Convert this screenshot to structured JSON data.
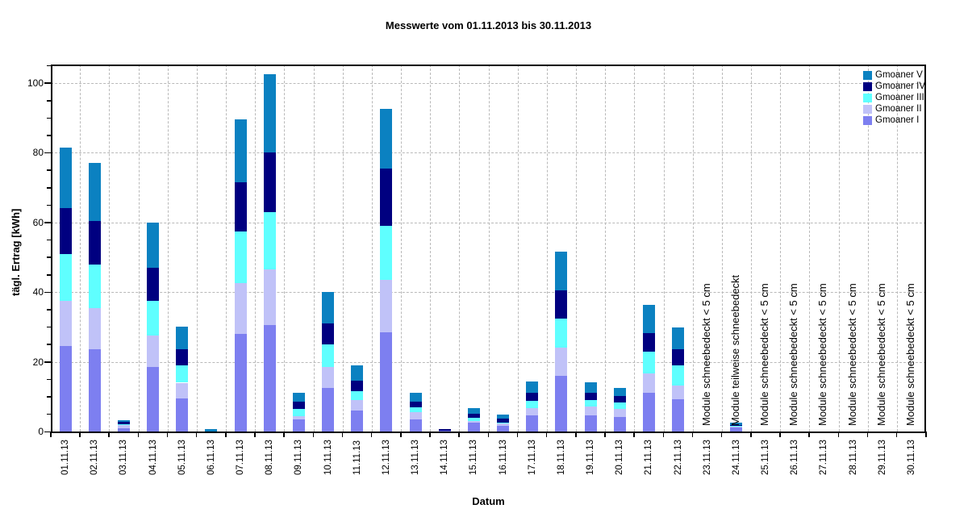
{
  "chart_data": {
    "type": "bar",
    "stacked": true,
    "title": "Messwerte vom 01.11.2013 bis 30.11.2013",
    "xlabel": "Datum",
    "ylabel": "tägl. Ertrag [kWh]",
    "ylim": [
      0,
      105
    ],
    "yticks": [
      0,
      20,
      40,
      60,
      80,
      100
    ],
    "minor_tick_step": 5,
    "grid": true,
    "grid_color": "#b9b9b9",
    "axis_color": "#000000",
    "legend_position": "top-right-inside",
    "legend_order": [
      "Gmoaner V",
      "Gmoaner IV",
      "Gmoaner III",
      "Gmoaner II",
      "Gmoaner I"
    ],
    "categories": [
      "01.11.13",
      "02.11.13",
      "03.11.13",
      "04.11.13",
      "05.11.13",
      "06.11.13",
      "07.11.13",
      "08.11.13",
      "09.11.13",
      "10.11.13",
      "11.11.13",
      "12.11.13",
      "13.11.13",
      "14.11.13",
      "15.11.13",
      "16.11.13",
      "17.11.13",
      "18.11.13",
      "19.11.13",
      "20.11.13",
      "21.11.13",
      "22.11.13",
      "23.11.13",
      "24.11.13",
      "25.11.13",
      "26.11.13",
      "27.11.13",
      "28.11.13",
      "29.11.13",
      "30.11.13"
    ],
    "series": [
      {
        "name": "Gmoaner I",
        "color": "#7d7ff0",
        "values": [
          24.5,
          23.5,
          1.0,
          18.5,
          9.5,
          0.1,
          28.0,
          30.5,
          3.5,
          12.5,
          6.0,
          28.5,
          3.5,
          0.2,
          2.5,
          1.7,
          4.6,
          16.0,
          4.6,
          4.2,
          11.0,
          9.3,
          0,
          1.1,
          0,
          0,
          0,
          0,
          0,
          0
        ]
      },
      {
        "name": "Gmoaner II",
        "color": "#c0c2f8",
        "values": [
          13.0,
          12.0,
          0.9,
          9.0,
          4.5,
          0,
          14.5,
          16.0,
          1.0,
          6.0,
          3.0,
          15.0,
          2.0,
          0,
          0.5,
          0.5,
          2.1,
          8.0,
          2.6,
          2.2,
          5.7,
          3.8,
          0,
          0.4,
          0,
          0,
          0,
          0,
          0,
          0
        ]
      },
      {
        "name": "Gmoaner III",
        "color": "#5fffff",
        "values": [
          13.5,
          12.5,
          0.2,
          10.0,
          5.0,
          0,
          15.0,
          16.5,
          2.0,
          6.5,
          2.5,
          15.5,
          1.5,
          0,
          1.0,
          0.4,
          2.2,
          8.5,
          1.8,
          1.9,
          6.1,
          5.8,
          0,
          0.3,
          0,
          0,
          0,
          0,
          0,
          0
        ]
      },
      {
        "name": "Gmoaner IV",
        "color": "#000080",
        "values": [
          13.0,
          12.5,
          0.6,
          9.5,
          4.5,
          0,
          14.0,
          17.0,
          2.0,
          6.0,
          3.0,
          16.5,
          1.5,
          0.6,
          1.0,
          1.0,
          2.3,
          8.0,
          2.2,
          1.9,
          5.4,
          4.6,
          0,
          0.1,
          0,
          0,
          0,
          0,
          0,
          0
        ]
      },
      {
        "name": "Gmoaner V",
        "color": "#0b81c1",
        "values": [
          17.5,
          16.5,
          0.5,
          13.0,
          6.5,
          0.7,
          18.0,
          22.5,
          2.5,
          9.0,
          4.5,
          17.0,
          2.5,
          0,
          1.8,
          1.2,
          3.1,
          11.0,
          2.9,
          2.4,
          8.1,
          6.4,
          0,
          0.6,
          0,
          0,
          0,
          0,
          0,
          0
        ]
      }
    ],
    "annotations": [
      {
        "category": "23.11.13",
        "text": "Module schneebedeckt < 5 cm"
      },
      {
        "category": "24.11.13",
        "text": "Module teilweise schneebedeckt"
      },
      {
        "category": "25.11.13",
        "text": "Module schneebedeckt < 5 cm"
      },
      {
        "category": "26.11.13",
        "text": "Module schneebedeckt < 5 cm"
      },
      {
        "category": "27.11.13",
        "text": "Module schneebedeckt < 5 cm"
      },
      {
        "category": "28.11.13",
        "text": "Module schneebedeckt < 5 cm"
      },
      {
        "category": "29.11.13",
        "text": "Module schneebedeckt < 5 cm"
      },
      {
        "category": "30.11.13",
        "text": "Module schneebedeckt < 5 cm"
      }
    ]
  }
}
